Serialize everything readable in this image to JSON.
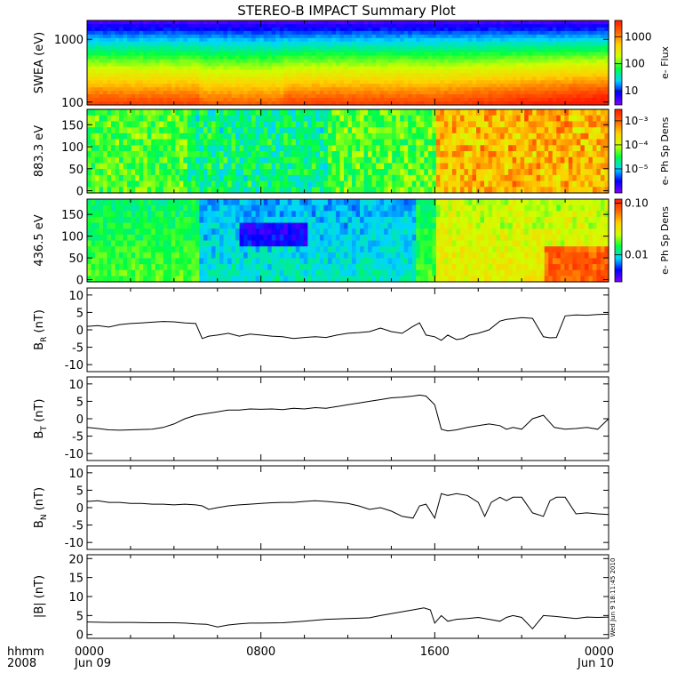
{
  "title": "STEREO-B IMPACT Summary Plot",
  "x_axis": {
    "corner_labels": [
      "hhmm",
      "2008"
    ],
    "ticks": [
      {
        "hour": 0,
        "time": "0000",
        "date": "Jun 09"
      },
      {
        "hour": 8,
        "time": "0800",
        "date": ""
      },
      {
        "hour": 16,
        "time": "1600",
        "date": ""
      },
      {
        "hour": 24,
        "time": "0000",
        "date": "Jun 10"
      }
    ]
  },
  "side_stamp": "Wed Jun 9 18:11:45 2010",
  "colors": {
    "line": "#000000",
    "colormap": [
      "#7f00ff",
      "#0000ff",
      "#00d5ff",
      "#00ff40",
      "#cfff00",
      "#ffd000",
      "#ff6600",
      "#ff1a00"
    ]
  },
  "chart_data": [
    {
      "type": "heatmap",
      "ylabel": "SWEA (eV)",
      "yscale": "log",
      "ylim": [
        90,
        2000
      ],
      "yticks": [
        {
          "v": 1000,
          "t": "1000"
        },
        {
          "v": 100,
          "t": "100"
        }
      ],
      "colorbar": {
        "label": "e- Flux",
        "scale": "log",
        "range": [
          3,
          4000
        ],
        "ticks": [
          {
            "v": 1000,
            "t": "1000"
          },
          {
            "v": 100,
            "t": "100"
          },
          {
            "v": 10,
            "t": "10"
          }
        ]
      }
    },
    {
      "type": "heatmap",
      "ylabel": "883.3 eV",
      "ylim": [
        -5,
        185
      ],
      "yticks": [
        {
          "v": 0,
          "t": "0"
        },
        {
          "v": 50,
          "t": "50"
        },
        {
          "v": 100,
          "t": "100"
        },
        {
          "v": 150,
          "t": "150"
        }
      ],
      "colorbar": {
        "label": "e- Ph Sp Dens",
        "scale": "log",
        "range": [
          1e-06,
          0.003
        ],
        "ticks": [
          {
            "v": 0.001,
            "t": "10⁻³"
          },
          {
            "v": 0.0001,
            "t": "10⁻⁴"
          },
          {
            "v": 1e-05,
            "t": "10⁻⁵"
          }
        ]
      }
    },
    {
      "type": "heatmap",
      "ylabel": "436.5 eV",
      "ylim": [
        -5,
        185
      ],
      "yticks": [
        {
          "v": 0,
          "t": "0"
        },
        {
          "v": 50,
          "t": "50"
        },
        {
          "v": 100,
          "t": "100"
        },
        {
          "v": 150,
          "t": "150"
        }
      ],
      "colorbar": {
        "label": "e- Ph Sp Dens",
        "scale": "log",
        "range": [
          0.003,
          0.12
        ],
        "ticks": [
          {
            "v": 0.1,
            "t": "0.10"
          },
          {
            "v": 0.01,
            "t": "0.01"
          }
        ]
      }
    },
    {
      "type": "line",
      "ylabel": "B",
      "ysub": "R",
      "yunit": " (nT)",
      "ylim": [
        -12,
        12
      ],
      "yticks": [
        -10,
        -5,
        0,
        5,
        10
      ],
      "x": [
        0,
        0.5,
        1,
        1.5,
        2,
        2.5,
        3,
        3.5,
        4,
        4.5,
        5,
        5.3,
        5.6,
        6,
        6.5,
        7,
        7.5,
        8,
        8.5,
        9,
        9.5,
        10,
        10.5,
        11,
        11.5,
        12,
        12.5,
        13,
        13.5,
        14,
        14.5,
        15,
        15.3,
        15.6,
        16,
        16.3,
        16.6,
        17,
        17.3,
        17.6,
        18,
        18.5,
        19,
        19.3,
        19.6,
        20,
        20.5,
        21,
        21.3,
        21.6,
        22,
        22.5,
        23,
        23.5,
        24
      ],
      "y": [
        1,
        1.2,
        0.8,
        1.5,
        1.8,
        2,
        2.2,
        2.4,
        2.3,
        2,
        1.8,
        -2.5,
        -1.8,
        -1.5,
        -1,
        -1.8,
        -1.2,
        -1.5,
        -1.8,
        -2,
        -2.5,
        -2.2,
        -2,
        -2.2,
        -1.5,
        -1,
        -0.8,
        -0.5,
        0.5,
        -0.5,
        -1,
        1,
        2,
        -1.5,
        -2,
        -3,
        -1.5,
        -2.8,
        -2.5,
        -1.5,
        -1,
        0,
        2.5,
        3,
        3.2,
        3.5,
        3.3,
        -2,
        -2.3,
        -2.2,
        4,
        4.3,
        4.2,
        4.4,
        4.5
      ]
    },
    {
      "type": "line",
      "ylabel": "B",
      "ysub": "T",
      "yunit": " (nT)",
      "ylim": [
        -12,
        12
      ],
      "yticks": [
        -10,
        -5,
        0,
        5,
        10
      ],
      "x": [
        0,
        0.5,
        1,
        1.5,
        2,
        2.5,
        3,
        3.5,
        4,
        4.5,
        5,
        5.5,
        6,
        6.5,
        7,
        7.5,
        8,
        8.5,
        9,
        9.5,
        10,
        10.5,
        11,
        11.5,
        12,
        12.5,
        13,
        13.5,
        14,
        14.5,
        15,
        15.3,
        15.6,
        16,
        16.3,
        16.6,
        17,
        17.5,
        18,
        18.5,
        19,
        19.3,
        19.6,
        20,
        20.5,
        21,
        21.5,
        22,
        22.5,
        23,
        23.5,
        24
      ],
      "y": [
        -2.5,
        -2.8,
        -3.2,
        -3.3,
        -3.2,
        -3.1,
        -3,
        -2.5,
        -1.5,
        0,
        1,
        1.5,
        2,
        2.5,
        2.5,
        2.8,
        2.7,
        2.8,
        2.6,
        3,
        2.8,
        3.2,
        3,
        3.5,
        4,
        4.5,
        5,
        5.5,
        6,
        6.2,
        6.5,
        6.8,
        6.5,
        4,
        -3,
        -3.5,
        -3.2,
        -2.5,
        -2,
        -1.5,
        -2,
        -3,
        -2.5,
        -3,
        0,
        1,
        -2.5,
        -3,
        -2.8,
        -2.5,
        -3,
        0
      ]
    },
    {
      "type": "line",
      "ylabel": "B",
      "ysub": "N",
      "yunit": " (nT)",
      "ylim": [
        -12,
        12
      ],
      "yticks": [
        -10,
        -5,
        0,
        5,
        10
      ],
      "x": [
        0,
        0.5,
        1,
        1.5,
        2,
        2.5,
        3,
        3.5,
        4,
        4.5,
        5,
        5.3,
        5.6,
        6,
        6.5,
        7,
        7.5,
        8,
        8.5,
        9,
        9.5,
        10,
        10.5,
        11,
        11.5,
        12,
        12.5,
        13,
        13.5,
        14,
        14.5,
        15,
        15.3,
        15.6,
        16,
        16.3,
        16.6,
        17,
        17.5,
        18,
        18.3,
        18.6,
        19,
        19.3,
        19.6,
        20,
        20.5,
        21,
        21.3,
        21.6,
        22,
        22.5,
        23,
        23.5,
        24
      ],
      "y": [
        1.8,
        2,
        1.5,
        1.5,
        1.2,
        1.2,
        1,
        1,
        0.8,
        1,
        0.8,
        0.5,
        -0.5,
        0,
        0.5,
        0.8,
        1,
        1.2,
        1.4,
        1.5,
        1.5,
        1.8,
        2,
        1.8,
        1.5,
        1.2,
        0.5,
        -0.5,
        0,
        -1,
        -2.5,
        -3,
        0.5,
        1,
        -3,
        4,
        3.5,
        4,
        3.5,
        1.5,
        -2.5,
        1.5,
        3,
        2,
        3,
        3,
        -1.5,
        -2.5,
        2,
        3,
        3,
        -1.8,
        -1.5,
        -1.8,
        -2
      ]
    },
    {
      "type": "line",
      "ylabel": "|B|",
      "yunit": " (nT)",
      "ylim": [
        -1,
        21
      ],
      "yticks": [
        0,
        5,
        10,
        15,
        20
      ],
      "x": [
        0,
        1,
        2,
        3,
        4,
        4.5,
        5,
        5.5,
        6,
        6.5,
        7,
        7.5,
        8,
        9,
        10,
        11,
        12,
        12.5,
        13,
        13.5,
        14,
        14.5,
        15,
        15.5,
        15.8,
        16,
        16.3,
        16.6,
        17,
        17.5,
        18,
        18.5,
        19,
        19.3,
        19.6,
        20,
        20.5,
        21,
        21.5,
        22,
        22.5,
        23,
        23.5,
        24
      ],
      "y": [
        3.3,
        3.2,
        3.2,
        3.1,
        3.1,
        3,
        2.8,
        2.7,
        2,
        2.5,
        2.8,
        3,
        3,
        3.1,
        3.5,
        4,
        4.2,
        4.3,
        4.4,
        5,
        5.5,
        6,
        6.5,
        7,
        6.5,
        3,
        5,
        3.5,
        4,
        4.2,
        4.5,
        4,
        3.5,
        4.5,
        5,
        4.5,
        1.5,
        5,
        4.8,
        4.5,
        4.2,
        4.6,
        4.5,
        4.6
      ]
    }
  ]
}
